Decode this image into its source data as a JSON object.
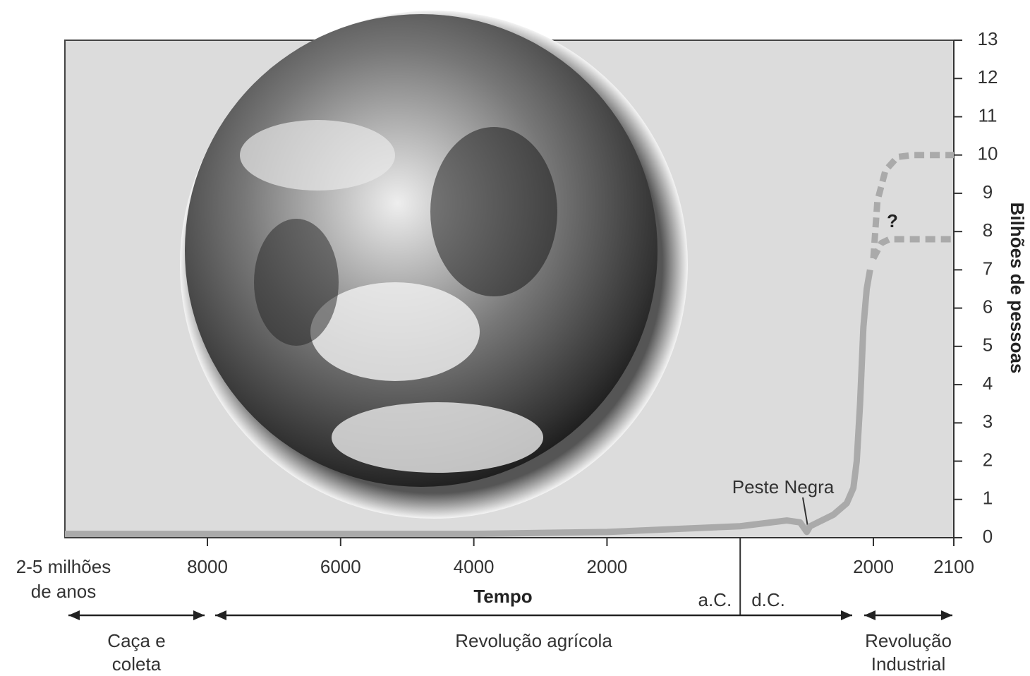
{
  "chart_data": {
    "type": "line",
    "ylabel": "Bilhões de pessoas",
    "xlabel": "Tempo",
    "x_origin_label": [
      "2-5 milhões",
      "de anos"
    ],
    "era_boundary": {
      "value": 0,
      "left_label": "a.C.",
      "right_label": "d.C."
    },
    "xlim": [
      -10140,
      2100
    ],
    "xticks": [
      {
        "value": -8000,
        "label": "8000"
      },
      {
        "value": -6000,
        "label": "6000"
      },
      {
        "value": -4000,
        "label": "4000"
      },
      {
        "value": -2000,
        "label": "2000"
      },
      2000,
      2100
    ],
    "ylim": [
      0,
      13
    ],
    "yticks": [
      0,
      1,
      2,
      3,
      4,
      5,
      6,
      7,
      8,
      9,
      10,
      11,
      12,
      13
    ],
    "series": [
      {
        "color": "#aaaaaa",
        "dashed": false,
        "x": [
          -10140,
          -4000,
          -2000,
          0,
          700,
          900,
          1000,
          1050,
          1400,
          1600,
          1700,
          1750,
          1800,
          1850,
          1900,
          1950
        ],
        "values": [
          0.1,
          0.1,
          0.15,
          0.3,
          0.45,
          0.4,
          0.15,
          0.3,
          0.6,
          0.9,
          1.3,
          2,
          3.5,
          5.5,
          6.5,
          7.0
        ]
      },
      {
        "color": "#aaaaaa",
        "dashed": true,
        "x": [
          2000,
          2005,
          2015,
          2030,
          2050,
          2100
        ],
        "values": [
          7.3,
          8.8,
          9.6,
          9.95,
          10,
          10
        ]
      },
      {
        "color": "#aaaaaa",
        "dashed": true,
        "x": [
          2000,
          2010,
          2020,
          2050,
          2100
        ],
        "values": [
          7.3,
          7.7,
          7.8,
          7.8,
          7.8
        ]
      }
    ],
    "annotations": [
      "Peste Negra",
      "?"
    ],
    "periods": [
      {
        "label_lines": [
          "Caça e",
          "coleta"
        ]
      },
      {
        "label_lines": [
          "Revolução agrícola"
        ]
      },
      {
        "label_lines": [
          "Revolução",
          "Industrial"
        ]
      }
    ]
  }
}
